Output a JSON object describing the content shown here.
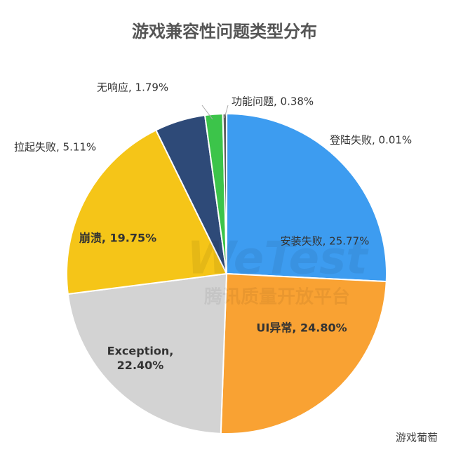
{
  "chart_data": {
    "type": "pie",
    "title": "游戏兼容性问题类型分布",
    "categories": [
      "登陆失败",
      "安装失败",
      "UI异常",
      "Exception",
      "崩溃",
      "拉起失败",
      "无响应",
      "功能问题"
    ],
    "values": [
      0.01,
      25.77,
      24.8,
      22.4,
      19.75,
      5.11,
      1.79,
      0.38
    ],
    "value_labels": [
      "登陆失败, 0.01%",
      "安装失败, 25.77%",
      "UI异常, 24.80%",
      "Exception, 22.40%",
      "崩溃, 19.75%",
      "拉起失败, 5.11%",
      "无响应, 1.79%",
      "功能问题, 0.38%"
    ],
    "colors": [
      "#9bbbe0",
      "#3d9cf0",
      "#f9a233",
      "#d3d3d3",
      "#f5c518",
      "#2e4a78",
      "#3cc44a",
      "#5f5f5f"
    ],
    "watermark": [
      "WeTest",
      "腾讯质量开放平台"
    ],
    "source": "游戏葡萄"
  }
}
